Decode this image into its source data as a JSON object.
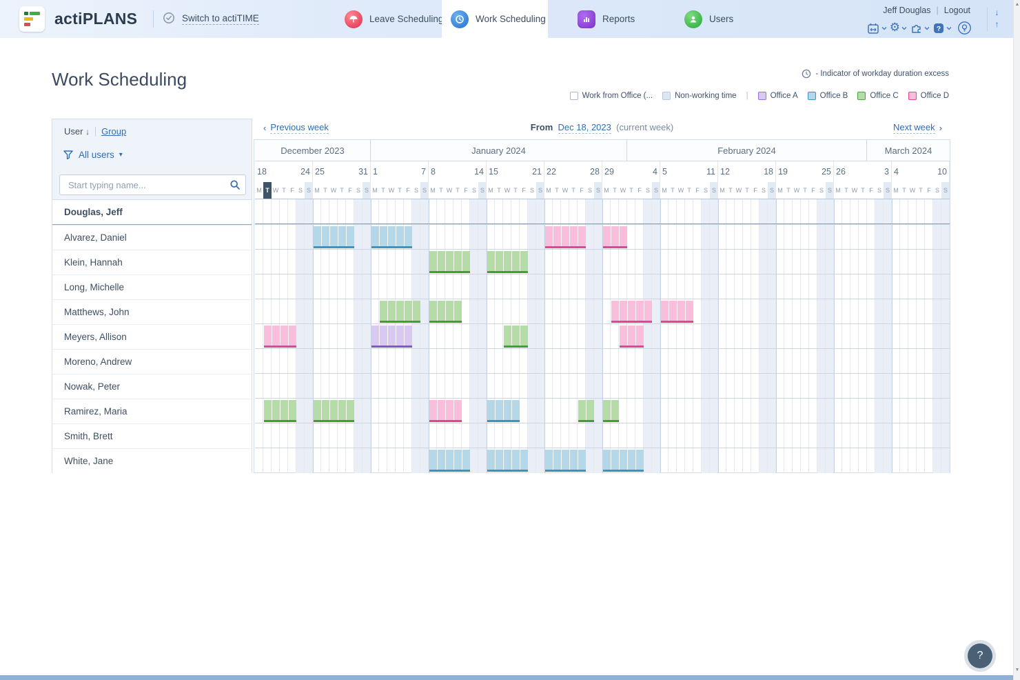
{
  "header": {
    "logo_text": "actiPLANS",
    "switch_label": "Switch to actiTIME",
    "tabs": [
      {
        "label": "Leave Scheduling"
      },
      {
        "label": "Work Scheduling",
        "active": true
      },
      {
        "label": "Reports"
      },
      {
        "label": "Users"
      }
    ],
    "account": {
      "user_name": "Jeff Douglas",
      "separator": "|",
      "logout_label": "Logout"
    }
  },
  "page": {
    "title": "Work Scheduling"
  },
  "indicator": {
    "label": "- Indicator of workday duration excess"
  },
  "legend": {
    "items": [
      {
        "label": "Work from Office (...",
        "fill": "#ffffff",
        "border": "#a9b7c9",
        "group": 1
      },
      {
        "label": "Non-working time",
        "fill": "#dde7f3",
        "border": "#b9c7dc",
        "group": 1
      },
      {
        "label": "Office A",
        "fill": "#d8c9f2",
        "border": "#9a6fe0",
        "group": 2
      },
      {
        "label": "Office B",
        "fill": "#b4d8e9",
        "border": "#3e93bd",
        "group": 2
      },
      {
        "label": "Office C",
        "fill": "#b5dba6",
        "border": "#44a73d",
        "group": 2
      },
      {
        "label": "Office D",
        "fill": "#f8bedb",
        "border": "#e83f97",
        "group": 2
      }
    ]
  },
  "sidebar": {
    "sort_user_label": "User",
    "sort_group_label": "Group",
    "filter_label": "All users",
    "search_placeholder": "Start typing name..."
  },
  "calendar": {
    "prev_label": "Previous week",
    "from_label": "From",
    "from_date": "Dec 18, 2023",
    "current_week_note": "(current week)",
    "next_label": "Next week",
    "months": [
      {
        "name": "December 2023",
        "days": 14
      },
      {
        "name": "January 2024",
        "days": 31
      },
      {
        "name": "February 2024",
        "days": 29
      },
      {
        "name": "March 2024",
        "days": 10
      }
    ],
    "weeks": [
      {
        "start": "18",
        "end": "24"
      },
      {
        "start": "25",
        "end": "31"
      },
      {
        "start": "1",
        "end": "7"
      },
      {
        "start": "8",
        "end": "14"
      },
      {
        "start": "15",
        "end": "21"
      },
      {
        "start": "22",
        "end": "28"
      },
      {
        "start": "29",
        "end": "4"
      },
      {
        "start": "5",
        "end": "11"
      },
      {
        "start": "12",
        "end": "18"
      },
      {
        "start": "19",
        "end": "25"
      },
      {
        "start": "26",
        "end": "3"
      },
      {
        "start": "4",
        "end": "10"
      }
    ],
    "day_letters": [
      "M",
      "T",
      "W",
      "T",
      "F",
      "S",
      "S"
    ],
    "today": {
      "week": 0,
      "day": 1
    }
  },
  "offices": {
    "A": {
      "fill": "#d8c9f2",
      "border": "#7e57c2"
    },
    "B": {
      "fill": "#b4d8e9",
      "border": "#3e93bd"
    },
    "C": {
      "fill": "#b5dba6",
      "border": "#3f9e3a"
    },
    "D": {
      "fill": "#f8bedb",
      "border": "#e83f97"
    }
  },
  "schedule": {
    "rows": [
      {
        "user": "Douglas, Jeff",
        "pinned": true,
        "blocks": []
      },
      {
        "user": "Alvarez, Daniel",
        "blocks": [
          {
            "week": 1,
            "day": 0,
            "len": 5,
            "office": "B"
          },
          {
            "week": 2,
            "day": 0,
            "len": 5,
            "office": "B"
          },
          {
            "week": 5,
            "day": 0,
            "len": 5,
            "office": "D"
          },
          {
            "week": 6,
            "day": 0,
            "len": 3,
            "office": "D"
          }
        ]
      },
      {
        "user": "Klein, Hannah",
        "blocks": [
          {
            "week": 3,
            "day": 0,
            "len": 5,
            "office": "C"
          },
          {
            "week": 4,
            "day": 0,
            "len": 5,
            "office": "C"
          }
        ]
      },
      {
        "user": "Long, Michelle",
        "blocks": []
      },
      {
        "user": "Matthews, John",
        "blocks": [
          {
            "week": 2,
            "day": 1,
            "len": 5,
            "office": "C"
          },
          {
            "week": 3,
            "day": 0,
            "len": 4,
            "office": "C"
          },
          {
            "week": 6,
            "day": 1,
            "len": 5,
            "office": "D"
          },
          {
            "week": 7,
            "day": 0,
            "len": 4,
            "office": "D"
          }
        ]
      },
      {
        "user": "Meyers, Allison",
        "blocks": [
          {
            "week": 0,
            "day": 1,
            "len": 4,
            "office": "D"
          },
          {
            "week": 2,
            "day": 0,
            "len": 5,
            "office": "A"
          },
          {
            "week": 4,
            "day": 2,
            "len": 3,
            "office": "C"
          },
          {
            "week": 6,
            "day": 2,
            "len": 3,
            "office": "D"
          }
        ]
      },
      {
        "user": "Moreno, Andrew",
        "blocks": []
      },
      {
        "user": "Nowak, Peter",
        "blocks": []
      },
      {
        "user": "Ramirez, Maria",
        "blocks": [
          {
            "week": 0,
            "day": 1,
            "len": 4,
            "office": "C"
          },
          {
            "week": 1,
            "day": 0,
            "len": 5,
            "office": "C"
          },
          {
            "week": 3,
            "day": 0,
            "len": 4,
            "office": "D"
          },
          {
            "week": 4,
            "day": 0,
            "len": 4,
            "office": "B"
          },
          {
            "week": 5,
            "day": 4,
            "len": 2,
            "office": "C"
          },
          {
            "week": 6,
            "day": 0,
            "len": 2,
            "office": "C"
          }
        ]
      },
      {
        "user": "Smith, Brett",
        "blocks": []
      },
      {
        "user": "White, Jane",
        "blocks": [
          {
            "week": 3,
            "day": 0,
            "len": 5,
            "office": "B"
          },
          {
            "week": 4,
            "day": 0,
            "len": 5,
            "office": "B"
          },
          {
            "week": 5,
            "day": 0,
            "len": 5,
            "office": "B"
          },
          {
            "week": 6,
            "day": 0,
            "len": 5,
            "office": "B"
          }
        ]
      }
    ]
  },
  "misc": {
    "help_label": "?"
  }
}
